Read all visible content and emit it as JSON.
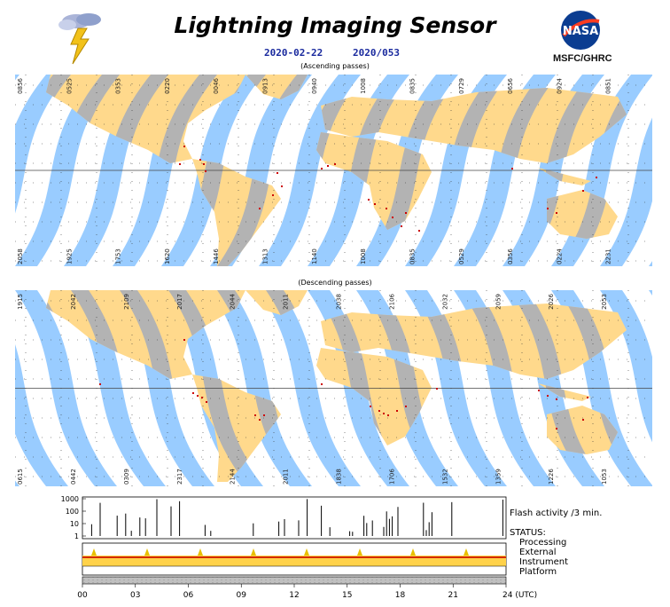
{
  "header": {
    "title": "Lightning Imaging Sensor",
    "date": "2020-02-22",
    "doy": "2020/053",
    "logo_text": "MSFC/GHRC",
    "logo_badge": "NASA",
    "icon_lightning": "lightning-cloud-icon"
  },
  "ascending": {
    "caption": "(Ascending passes)",
    "top_times": [
      "0856",
      "0525",
      "0353",
      "0220",
      "0046",
      "0913",
      "0940",
      "1008",
      "0835",
      "0729",
      "0656",
      "0924",
      "0851"
    ],
    "bottom_times": [
      "2058",
      "1925",
      "1753",
      "1620",
      "1446",
      "1313",
      "1140",
      "1008",
      "0835",
      "0529",
      "0356",
      "0224",
      "2231"
    ]
  },
  "descending": {
    "caption": "(Descending passes)",
    "top_times": [
      "1915",
      "2042",
      "2109",
      "2017",
      "2044",
      "2011",
      "2038",
      "2106",
      "2032",
      "2059",
      "2026",
      "2053"
    ],
    "bottom_times": [
      "0615",
      "0442",
      "0309",
      "2317",
      "2144",
      "2011",
      "1838",
      "1706",
      "1532",
      "1359",
      "1226",
      "1053"
    ]
  },
  "status": {
    "flash_label": "Flash activity /3 min.",
    "status_label": "STATUS:",
    "rows": [
      "Processing",
      "External",
      "Instrument",
      "Platform"
    ],
    "y_ticks": [
      "1000",
      "100",
      "10",
      "1"
    ],
    "x_ticks": [
      "00",
      "03",
      "06",
      "09",
      "12",
      "15",
      "18",
      "21",
      "24 (UTC)"
    ]
  },
  "colors": {
    "swath": "#99ccff",
    "land": "#ffd98c",
    "land_obs": "#b3b3b3",
    "flash": "#cc0000",
    "ocean": "#ffffff"
  }
}
